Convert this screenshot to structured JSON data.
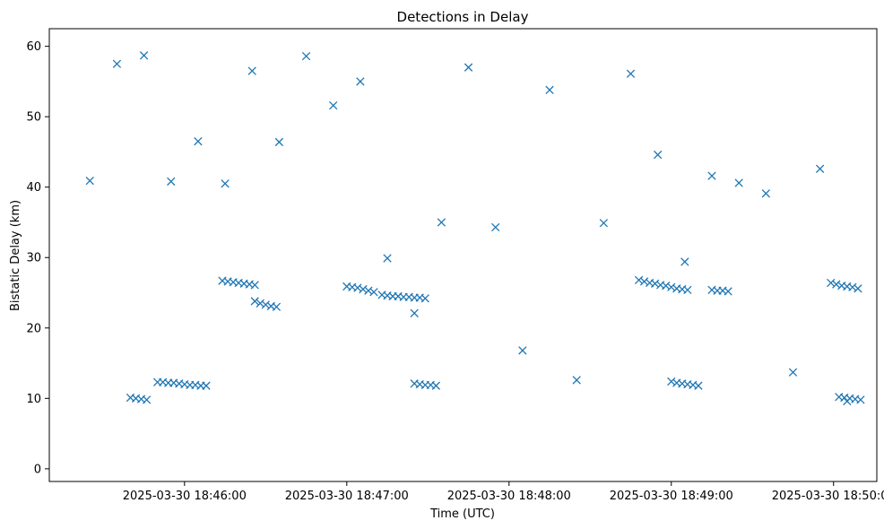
{
  "chart_data": {
    "type": "scatter",
    "title": "Detections in Delay",
    "xlabel": "Time (UTC)",
    "ylabel": "Bistatic Delay (km)",
    "marker": "x",
    "color": "#1f77b4",
    "grid": false,
    "legend": "none",
    "xlim": [
      "2025-03-30 18:45:10",
      "2025-03-30 18:50:16"
    ],
    "ylim": [
      -1.8,
      62.5
    ],
    "x_ticks": [
      "2025-03-30 18:46:00",
      "2025-03-30 18:47:00",
      "2025-03-30 18:48:00",
      "2025-03-30 18:49:00",
      "2025-03-30 18:50:00"
    ],
    "y_ticks": [
      0,
      10,
      20,
      30,
      40,
      50,
      60
    ],
    "series": [
      {
        "x": [
          "2025-03-30 18:45:25",
          "2025-03-30 18:45:35",
          "2025-03-30 18:45:45",
          "2025-03-30 18:45:55",
          "2025-03-30 18:46:05",
          "2025-03-30 18:46:15",
          "2025-03-30 18:46:25",
          "2025-03-30 18:46:35",
          "2025-03-30 18:46:45",
          "2025-03-30 18:46:55",
          "2025-03-30 18:47:05",
          "2025-03-30 18:47:15",
          "2025-03-30 18:47:25",
          "2025-03-30 18:47:35",
          "2025-03-30 18:47:45",
          "2025-03-30 18:47:55",
          "2025-03-30 18:48:05",
          "2025-03-30 18:48:15",
          "2025-03-30 18:48:25",
          "2025-03-30 18:48:35",
          "2025-03-30 18:48:45",
          "2025-03-30 18:48:55",
          "2025-03-30 18:49:05",
          "2025-03-30 18:49:15",
          "2025-03-30 18:49:25",
          "2025-03-30 18:49:35",
          "2025-03-30 18:49:45",
          "2025-03-30 18:49:55",
          "2025-03-30 18:50:05",
          "2025-03-30 18:45:50",
          "2025-03-30 18:45:52",
          "2025-03-30 18:45:54",
          "2025-03-30 18:45:56",
          "2025-03-30 18:45:58",
          "2025-03-30 18:46:00",
          "2025-03-30 18:46:02",
          "2025-03-30 18:46:04",
          "2025-03-30 18:46:06",
          "2025-03-30 18:46:08",
          "2025-03-30 18:46:14",
          "2025-03-30 18:46:16",
          "2025-03-30 18:46:18",
          "2025-03-30 18:46:20",
          "2025-03-30 18:46:22",
          "2025-03-30 18:46:24",
          "2025-03-30 18:46:26",
          "2025-03-30 18:47:00",
          "2025-03-30 18:47:02",
          "2025-03-30 18:47:04",
          "2025-03-30 18:47:06",
          "2025-03-30 18:47:08",
          "2025-03-30 18:47:10",
          "2025-03-30 18:47:13",
          "2025-03-30 18:47:15",
          "2025-03-30 18:47:17",
          "2025-03-30 18:47:19",
          "2025-03-30 18:47:21",
          "2025-03-30 18:47:23",
          "2025-03-30 18:47:25",
          "2025-03-30 18:47:27",
          "2025-03-30 18:47:29",
          "2025-03-30 18:48:48",
          "2025-03-30 18:48:50",
          "2025-03-30 18:48:52",
          "2025-03-30 18:48:54",
          "2025-03-30 18:48:56",
          "2025-03-30 18:48:58",
          "2025-03-30 18:49:00",
          "2025-03-30 18:49:02",
          "2025-03-30 18:49:04",
          "2025-03-30 18:49:06",
          "2025-03-30 18:49:15",
          "2025-03-30 18:49:17",
          "2025-03-30 18:49:19",
          "2025-03-30 18:49:21",
          "2025-03-30 18:49:59",
          "2025-03-30 18:50:01",
          "2025-03-30 18:50:03",
          "2025-03-30 18:50:05",
          "2025-03-30 18:50:07",
          "2025-03-30 18:50:09",
          "2025-03-30 18:45:40",
          "2025-03-30 18:45:42",
          "2025-03-30 18:45:44",
          "2025-03-30 18:45:46",
          "2025-03-30 18:49:00",
          "2025-03-30 18:49:02",
          "2025-03-30 18:49:04",
          "2025-03-30 18:49:06",
          "2025-03-30 18:49:08",
          "2025-03-30 18:49:10",
          "2025-03-30 18:50:02",
          "2025-03-30 18:50:04",
          "2025-03-30 18:50:06",
          "2025-03-30 18:50:08",
          "2025-03-30 18:50:10",
          "2025-03-30 18:47:25",
          "2025-03-30 18:47:27",
          "2025-03-30 18:47:29",
          "2025-03-30 18:47:31",
          "2025-03-30 18:47:33",
          "2025-03-30 18:46:26",
          "2025-03-30 18:46:28",
          "2025-03-30 18:46:30",
          "2025-03-30 18:46:32",
          "2025-03-30 18:46:34"
        ],
        "y": [
          40.9,
          57.5,
          58.7,
          40.8,
          46.5,
          40.5,
          56.5,
          46.4,
          58.6,
          51.6,
          55.0,
          29.9,
          22.1,
          35.0,
          57.0,
          34.3,
          16.8,
          53.8,
          12.6,
          34.9,
          56.1,
          44.6,
          29.4,
          41.6,
          40.6,
          39.1,
          13.7,
          42.6,
          9.6,
          12.3,
          12.3,
          12.2,
          12.2,
          12.1,
          12.0,
          11.9,
          11.9,
          11.8,
          11.8,
          26.7,
          26.6,
          26.5,
          26.4,
          26.3,
          26.2,
          26.1,
          25.9,
          25.8,
          25.7,
          25.5,
          25.3,
          25.1,
          24.7,
          24.6,
          24.5,
          24.5,
          24.4,
          24.4,
          24.3,
          24.3,
          24.2,
          26.8,
          26.6,
          26.4,
          26.3,
          26.1,
          26.0,
          25.8,
          25.6,
          25.5,
          25.4,
          25.4,
          25.3,
          25.3,
          25.2,
          26.4,
          26.2,
          26.0,
          25.9,
          25.8,
          25.6,
          10.1,
          10.0,
          9.9,
          9.8,
          12.4,
          12.2,
          12.1,
          12.0,
          11.9,
          11.8,
          10.2,
          10.1,
          10.0,
          9.9,
          9.8,
          12.1,
          12.0,
          11.9,
          11.9,
          11.8,
          23.8,
          23.5,
          23.3,
          23.1,
          23.0
        ]
      }
    ]
  }
}
